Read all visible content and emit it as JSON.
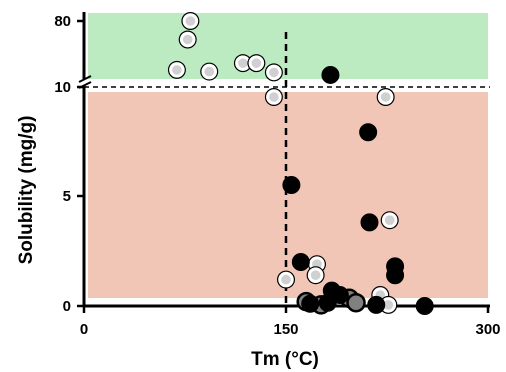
{
  "chart_data": {
    "type": "scatter",
    "title": "",
    "xlabel": "Tm (°C)",
    "ylabel": "Solubility (mg/g)",
    "xlim": [
      0,
      300
    ],
    "x_ticks": [
      {
        "value": 0,
        "label": "0"
      },
      {
        "value": 150,
        "label": "150"
      },
      {
        "value": 300,
        "label": "300"
      }
    ],
    "y_axis_broken": true,
    "y_lower_segment": {
      "range": [
        0,
        10
      ],
      "ticks": [
        {
          "value": 0,
          "label": "0"
        },
        {
          "value": 5,
          "label": "5"
        },
        {
          "value": 10,
          "label": "10"
        }
      ]
    },
    "y_upper_segment": {
      "range": [
        10,
        80
      ],
      "ticks": [
        {
          "value": 80,
          "label": "80"
        }
      ]
    },
    "reference_lines": [
      {
        "axis": "x",
        "value": 150,
        "style": "dashed"
      },
      {
        "axis": "y",
        "value": 10,
        "style": "dashed"
      }
    ],
    "regions": [
      {
        "y_range": [
          10,
          80
        ],
        "color": "#bdebc1"
      },
      {
        "y_range": [
          0,
          10
        ],
        "color": "#f2c6b6"
      }
    ],
    "colors": {
      "solid": "#000000",
      "open_fill": "#d0d0d0",
      "open_stroke": "#ffffff",
      "gray_fill": "#808080",
      "ring": "#000000"
    },
    "series": [
      {
        "marker": "open-circle",
        "points": [
          {
            "x": 69,
            "y": 22
          },
          {
            "x": 77,
            "y": 58
          },
          {
            "x": 79,
            "y": 80
          },
          {
            "x": 93,
            "y": 20
          },
          {
            "x": 118,
            "y": 30
          },
          {
            "x": 128,
            "y": 30
          },
          {
            "x": 141,
            "y": 19
          },
          {
            "x": 141,
            "y": 9.5
          },
          {
            "x": 150,
            "y": 1.2
          },
          {
            "x": 173,
            "y": 1.9
          },
          {
            "x": 172,
            "y": 1.4
          },
          {
            "x": 224,
            "y": 9.5
          },
          {
            "x": 227,
            "y": 3.9
          },
          {
            "x": 220,
            "y": 0.5
          },
          {
            "x": 226,
            "y": 0.05
          }
        ]
      },
      {
        "marker": "gray-circle",
        "points": [
          {
            "x": 165,
            "y": 0.2
          },
          {
            "x": 176,
            "y": 0.05
          },
          {
            "x": 197,
            "y": 0.35
          },
          {
            "x": 202,
            "y": 0.15
          }
        ]
      },
      {
        "marker": "solid-circle",
        "points": [
          {
            "x": 183,
            "y": 16
          },
          {
            "x": 154,
            "y": 5.5
          },
          {
            "x": 211,
            "y": 7.9
          },
          {
            "x": 212,
            "y": 3.8
          },
          {
            "x": 161,
            "y": 2.0
          },
          {
            "x": 231,
            "y": 1.8
          },
          {
            "x": 231,
            "y": 1.4
          },
          {
            "x": 184,
            "y": 0.7
          },
          {
            "x": 190,
            "y": 0.5
          },
          {
            "x": 168,
            "y": 0.1
          },
          {
            "x": 181,
            "y": 0.15
          },
          {
            "x": 217,
            "y": 0.05
          },
          {
            "x": 253,
            "y": 0.0
          }
        ]
      }
    ]
  }
}
